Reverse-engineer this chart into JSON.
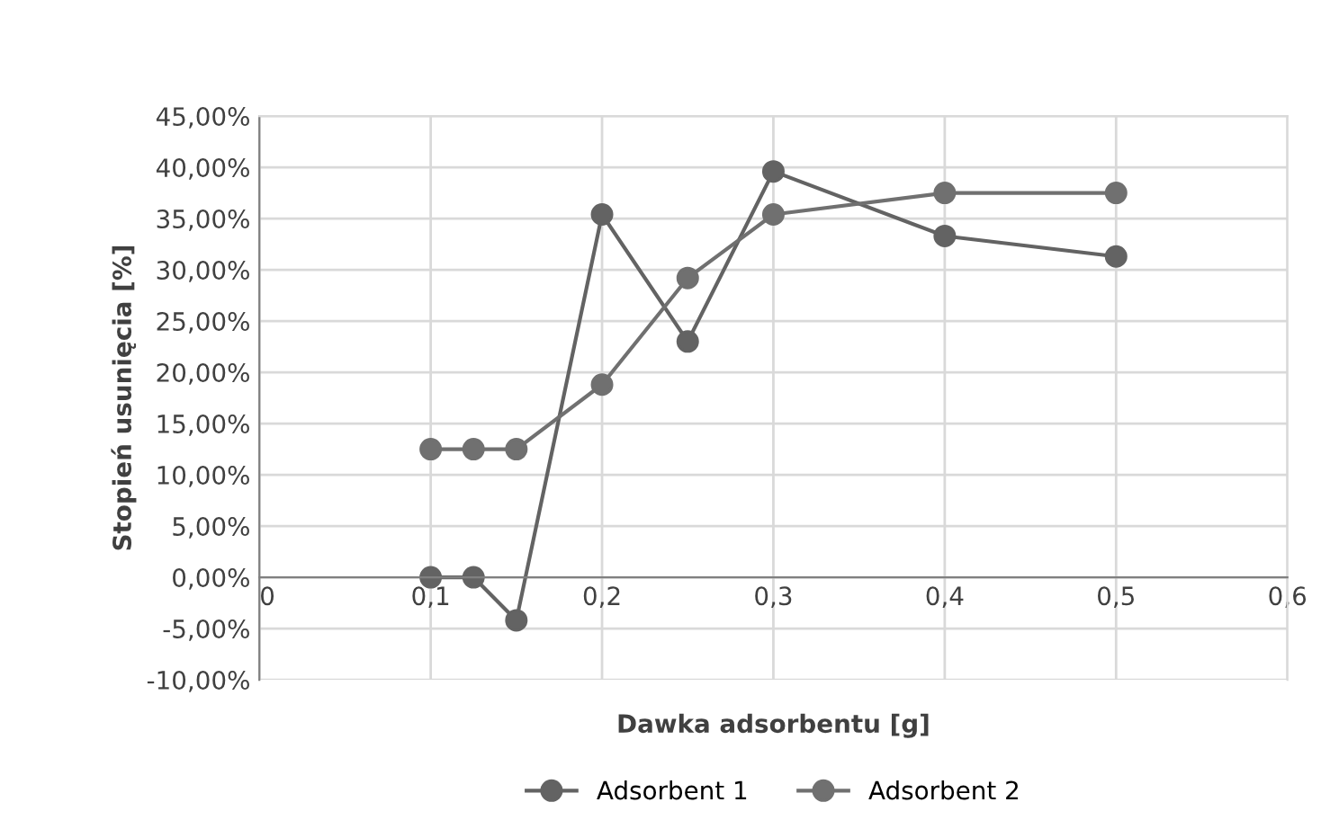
{
  "chart_data": {
    "type": "line",
    "xlabel": "Dawka adsorbentu [g]",
    "ylabel": "Stopień usunięcia [%]",
    "x": [
      0.1,
      0.125,
      0.15,
      0.2,
      0.25,
      0.3,
      0.4,
      0.5
    ],
    "series": [
      {
        "name": "Adsorbent 1",
        "color": "#636363",
        "values": [
          0,
          0,
          -4.2,
          35.4,
          23.0,
          39.6,
          33.3,
          31.3
        ]
      },
      {
        "name": "Adsorbent 2",
        "color": "#707070",
        "values": [
          12.5,
          12.5,
          12.5,
          18.8,
          29.2,
          35.4,
          37.5,
          37.5
        ]
      }
    ],
    "xlim": [
      0,
      0.6
    ],
    "xticks": [
      {
        "value": 0,
        "label": "0"
      },
      {
        "value": 0.1,
        "label": "0,1"
      },
      {
        "value": 0.2,
        "label": "0,2"
      },
      {
        "value": 0.3,
        "label": "0,3"
      },
      {
        "value": 0.4,
        "label": "0,4"
      },
      {
        "value": 0.5,
        "label": "0,5"
      },
      {
        "value": 0.6,
        "label": "0,6"
      }
    ],
    "ylim": [
      -10,
      45
    ],
    "yticks": [
      {
        "value": -10,
        "label": "-10,00%"
      },
      {
        "value": -5,
        "label": "-5,00%"
      },
      {
        "value": 0,
        "label": "0,00%"
      },
      {
        "value": 5,
        "label": "5,00%"
      },
      {
        "value": 10,
        "label": "10,00%"
      },
      {
        "value": 15,
        "label": "15,00%"
      },
      {
        "value": 20,
        "label": "20,00%"
      },
      {
        "value": 25,
        "label": "25,00%"
      },
      {
        "value": 30,
        "label": "30,00%"
      },
      {
        "value": 35,
        "label": "35,00%"
      },
      {
        "value": 40,
        "label": "40,00%"
      },
      {
        "value": 45,
        "label": "45,00%"
      }
    ],
    "grid": true,
    "legend": "bottom",
    "marker": "circle",
    "line_style": "solid"
  }
}
